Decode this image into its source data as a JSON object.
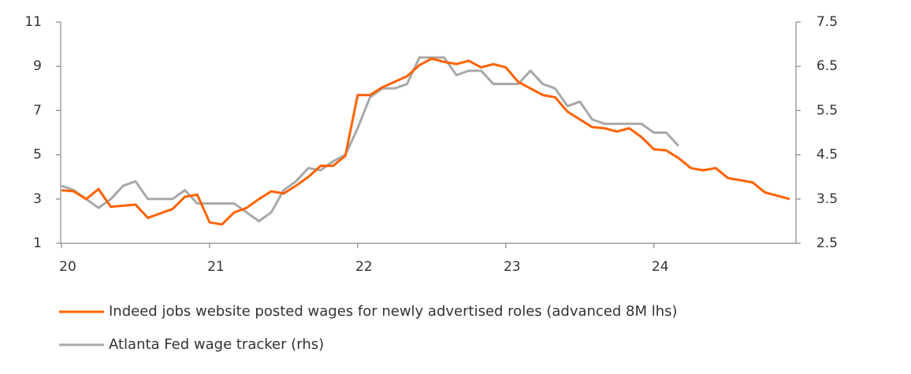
{
  "chart_data": {
    "type": "line",
    "categories": [
      "20",
      null,
      null,
      null,
      null,
      null,
      null,
      null,
      null,
      null,
      null,
      null,
      "21",
      null,
      null,
      null,
      null,
      null,
      null,
      null,
      null,
      null,
      null,
      null,
      "22",
      null,
      null,
      null,
      null,
      null,
      null,
      null,
      null,
      null,
      null,
      null,
      "23",
      null,
      null,
      null,
      null,
      null,
      null,
      null,
      null,
      null,
      null,
      null,
      "24",
      null,
      null,
      null,
      null,
      null,
      null,
      null,
      null,
      null,
      null,
      null
    ],
    "series": [
      {
        "name": "Indeed jobs website  posted wages for newly advertised roles (advanced 8M lhs)",
        "color": "#ff6200",
        "values": [
          3.4,
          3.35,
          3.0,
          3.45,
          2.65,
          2.7,
          2.75,
          2.15,
          2.35,
          2.55,
          3.1,
          3.2,
          1.95,
          1.85,
          2.4,
          2.6,
          3.0,
          3.35,
          3.25,
          3.6,
          4.0,
          4.5,
          4.5,
          4.95,
          7.7,
          7.7,
          8.05,
          8.3,
          8.55,
          9.05,
          9.35,
          9.2,
          9.1,
          9.25,
          8.95,
          9.1,
          8.95,
          8.3,
          8.0,
          7.7,
          7.6,
          6.95,
          6.6,
          6.25,
          6.2,
          6.05,
          6.2,
          5.8,
          5.25,
          5.2,
          4.85,
          4.4,
          4.3,
          4.4,
          3.95,
          3.85,
          3.75,
          3.3,
          3.15,
          3.0
        ]
      },
      {
        "name": "Atlanta Fed wage tracker (rhs)",
        "color": "#a8a8a8",
        "axis": "y2",
        "values": [
          3.8,
          3.7,
          3.5,
          3.3,
          3.5,
          3.8,
          3.9,
          3.5,
          3.5,
          3.5,
          3.7,
          3.4,
          3.4,
          3.4,
          3.4,
          3.2,
          3.0,
          3.2,
          3.7,
          3.9,
          4.2,
          4.15,
          4.35,
          4.5,
          5.1,
          5.8,
          6.0,
          6.0,
          6.1,
          6.7,
          6.7,
          6.7,
          6.3,
          6.4,
          6.4,
          6.1,
          6.1,
          6.1,
          6.4,
          6.1,
          6.0,
          5.6,
          5.7,
          5.3,
          5.2,
          5.2,
          5.2,
          5.2,
          5.0,
          5.0,
          4.7,
          null,
          null,
          null,
          null,
          null,
          null,
          null,
          null,
          null
        ]
      }
    ],
    "ylim": [
      1,
      11
    ],
    "yticks": [
      1,
      3,
      5,
      7,
      9,
      11
    ],
    "y2lim": [
      2.5,
      7.5
    ],
    "y2ticks": [
      2.5,
      3.5,
      4.5,
      5.5,
      6.5,
      7.5
    ]
  }
}
